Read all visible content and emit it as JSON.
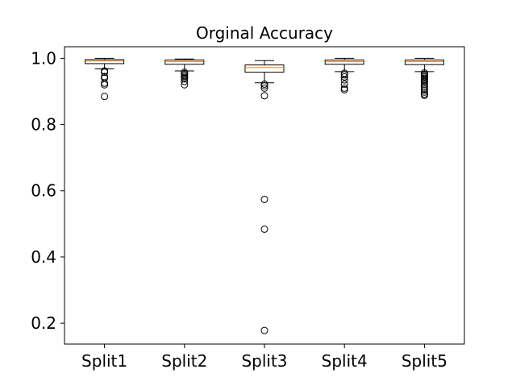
{
  "chart_data": {
    "type": "box",
    "title": "Orginal Accuracy",
    "xlabel": "",
    "ylabel": "",
    "ylim": [
      0.137,
      1.035
    ],
    "yticks": [
      {
        "value": 0.2,
        "label": "0.2"
      },
      {
        "value": 0.4,
        "label": "0.4"
      },
      {
        "value": 0.6,
        "label": "0.6"
      },
      {
        "value": 0.8,
        "label": "0.8"
      },
      {
        "value": 1.0,
        "label": "1.0"
      }
    ],
    "grid": false,
    "categories": [
      "Split1",
      "Split2",
      "Split3",
      "Split4",
      "Split5"
    ],
    "boxes": [
      {
        "whisker_low": 0.968,
        "q1": 0.984,
        "median": 0.992,
        "q3": 0.996,
        "whisker_high": 1.0,
        "outliers": [
          0.962,
          0.958,
          0.945,
          0.94,
          0.925,
          0.92,
          0.885
        ]
      },
      {
        "whisker_low": 0.962,
        "q1": 0.982,
        "median": 0.99,
        "q3": 0.995,
        "whisker_high": 0.998,
        "outliers": [
          0.958,
          0.954,
          0.95,
          0.946,
          0.942,
          0.938,
          0.93,
          0.92
        ]
      },
      {
        "whisker_low": 0.926,
        "q1": 0.958,
        "median": 0.972,
        "q3": 0.98,
        "whisker_high": 0.993,
        "outliers": [
          0.922,
          0.917,
          0.91,
          0.887,
          0.574,
          0.484,
          0.178
        ]
      },
      {
        "whisker_low": 0.96,
        "q1": 0.982,
        "median": 0.99,
        "q3": 0.995,
        "whisker_high": 1.0,
        "outliers": [
          0.955,
          0.95,
          0.944,
          0.935,
          0.922,
          0.91,
          0.905
        ]
      },
      {
        "whisker_low": 0.96,
        "q1": 0.981,
        "median": 0.99,
        "q3": 0.995,
        "whisker_high": 1.0,
        "outliers": [
          0.956,
          0.952,
          0.948,
          0.944,
          0.94,
          0.936,
          0.932,
          0.928,
          0.922,
          0.916,
          0.91,
          0.904,
          0.898,
          0.892,
          0.888
        ]
      }
    ],
    "colors": {
      "box": "#000000",
      "median": "#ff7f0e",
      "outlier": "#000000"
    }
  }
}
